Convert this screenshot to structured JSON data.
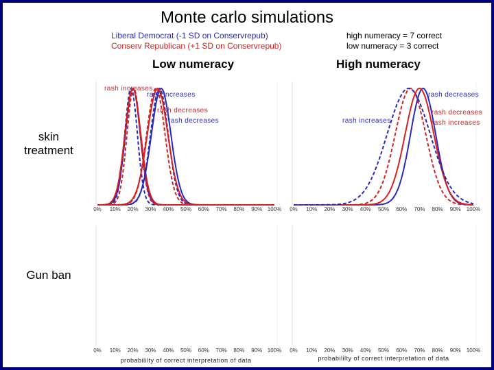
{
  "title": "Monte carlo simulations",
  "legend": {
    "dem_label": "Liberal Democrat (-1 SD on Conservrepub)",
    "rep_label": "Conserv Republican (+1 SD on Conservrepub)",
    "high_def": "high numeracy = 7 correct",
    "low_def": "low numeracy =  3 correct"
  },
  "col_labels": {
    "low": "Low numeracy",
    "high": "High numeracy"
  },
  "row_labels": {
    "skin_1": "skin",
    "skin_2": "treatment",
    "gun": "Gun ban"
  },
  "colors": {
    "democrat": "#2a2ab8",
    "republican": "#d42020",
    "frame": "#00007a"
  },
  "x_ticks": [
    "0%",
    "10%",
    "20%",
    "30%",
    "40%",
    "50%",
    "60%",
    "70%",
    "80%",
    "90%",
    "100%"
  ],
  "x_label": "probabililty of correct interpretation of data",
  "chart_data": [
    {
      "type": "line",
      "panel": "skin treatment / low numeracy",
      "x_ticks": [
        "0%",
        "10%",
        "20%",
        "30%",
        "40%",
        "50%",
        "60%",
        "70%",
        "80%",
        "90%",
        "100%"
      ],
      "xlim": [
        0,
        100
      ],
      "series": [
        {
          "condition": "rash increases",
          "party": "democrat",
          "style": "solid",
          "mean": 20,
          "sd": 4.2
        },
        {
          "condition": "rash increases",
          "party": "democrat",
          "style": "dashed",
          "mean": 19,
          "sd": 3.6
        },
        {
          "condition": "rash increases",
          "party": "republican",
          "style": "solid",
          "mean": 20,
          "sd": 4.5
        },
        {
          "condition": "rash increases",
          "party": "republican",
          "style": "dashed",
          "mean": 20.5,
          "sd": 3.8
        },
        {
          "condition": "rash decreases",
          "party": "democrat",
          "style": "solid",
          "mean": 36,
          "sd": 5.5
        },
        {
          "condition": "rash decreases",
          "party": "democrat",
          "style": "dashed",
          "mean": 35,
          "sd": 5.0
        },
        {
          "condition": "rash decreases",
          "party": "republican",
          "style": "solid",
          "mean": 34,
          "sd": 5.8
        },
        {
          "condition": "rash decreases",
          "party": "republican",
          "style": "dashed",
          "mean": 33,
          "sd": 5.2
        }
      ],
      "annotations": [
        {
          "text": "rash increases",
          "color": "republican"
        },
        {
          "text": "rash increases",
          "color": "democrat"
        },
        {
          "text": "rash decreases",
          "color": "republican"
        },
        {
          "text": "rash decreases",
          "color": "democrat"
        }
      ]
    },
    {
      "type": "line",
      "panel": "skin treatment / high numeracy",
      "x_ticks": [
        "0%",
        "10%",
        "20%",
        "30%",
        "40%",
        "50%",
        "60%",
        "70%",
        "80%",
        "90%",
        "100%"
      ],
      "xlim": [
        0,
        100
      ],
      "series": [
        {
          "condition": "rash decreases",
          "party": "democrat",
          "style": "solid",
          "mean": 72,
          "sd": 7
        },
        {
          "condition": "rash decreases",
          "party": "republican",
          "style": "solid",
          "mean": 70,
          "sd": 8
        },
        {
          "condition": "rash increases",
          "party": "republican",
          "style": "dashed",
          "mean": 65,
          "sd": 8.5
        },
        {
          "condition": "rash increases",
          "party": "democrat",
          "style": "dashed",
          "mean": 64,
          "sd": 12
        }
      ],
      "annotations": [
        {
          "text": "rash decreases",
          "color": "democrat"
        },
        {
          "text": "rash decreases",
          "color": "republican"
        },
        {
          "text": "rash increases",
          "color": "democrat"
        },
        {
          "text": "rash increases",
          "color": "republican"
        }
      ]
    },
    {
      "type": "line",
      "panel": "gun ban / low numeracy",
      "x_ticks": [
        "0%",
        "10%",
        "20%",
        "30%",
        "40%",
        "50%",
        "60%",
        "70%",
        "80%",
        "90%",
        "100%"
      ],
      "xlabel": "probabililty of correct interpretation of data",
      "xlim": [
        0,
        100
      ],
      "series": []
    },
    {
      "type": "line",
      "panel": "gun ban / high numeracy",
      "x_ticks": [
        "0%",
        "10%",
        "20%",
        "30%",
        "40%",
        "50%",
        "60%",
        "70%",
        "80%",
        "90%",
        "100%"
      ],
      "xlabel": "probabililty of correct interpretation of data",
      "xlim": [
        0,
        100
      ],
      "series": []
    }
  ]
}
